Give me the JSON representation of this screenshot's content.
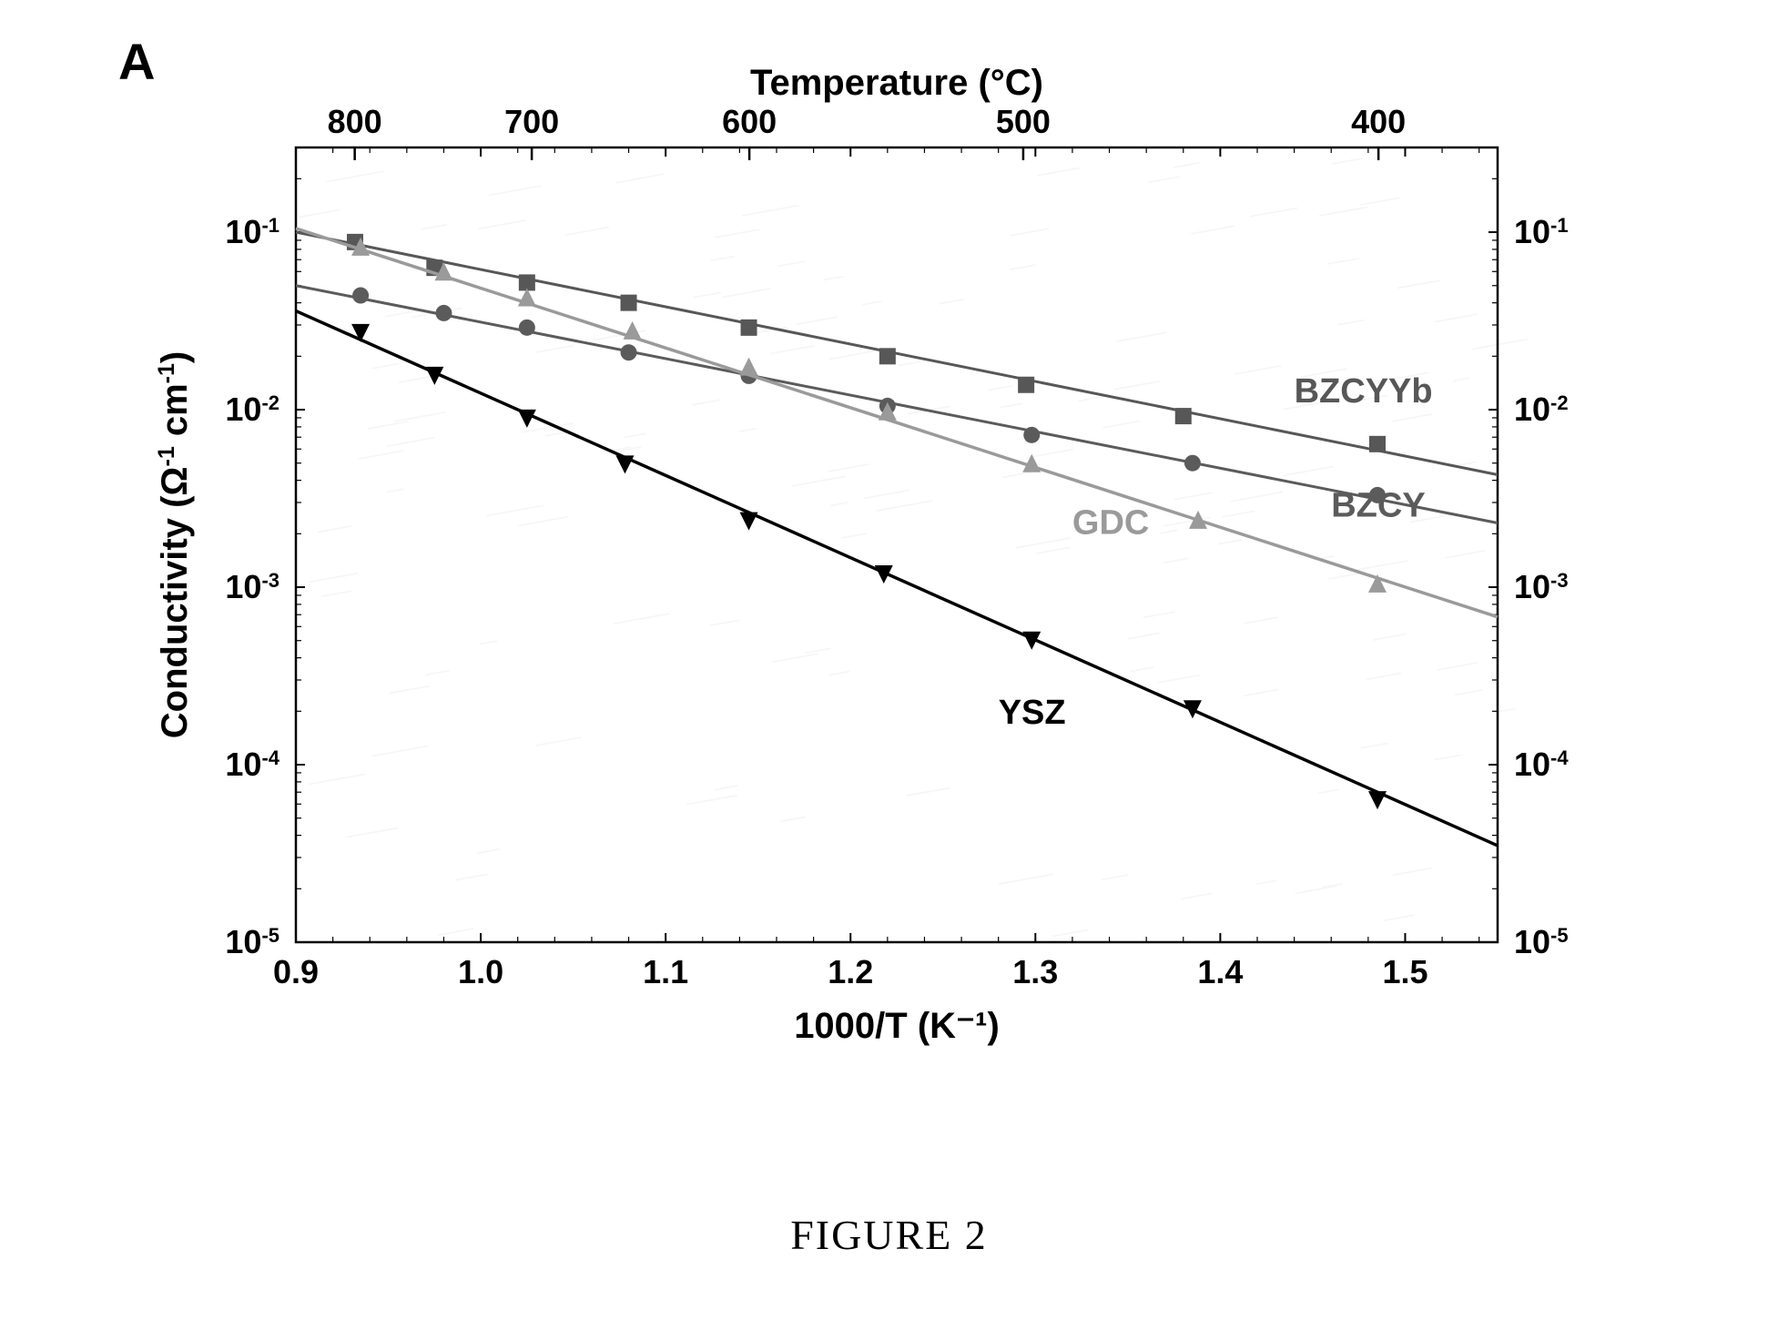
{
  "panel_label": "A",
  "caption": "FIGURE 2",
  "chart": {
    "type": "line-scatter-arrhenius",
    "background_color": "#ffffff",
    "axis_color": "#000000",
    "axis_line_width": 2.5,
    "tick_length": 10,
    "minor_tick_length": 6,
    "plot_background_noise": true,
    "x_axis_bottom": {
      "title": "1000/T (K⁻¹)",
      "title_fontsize": 40,
      "xlim": [
        0.9,
        1.55
      ],
      "ticks": [
        0.9,
        1.0,
        1.1,
        1.2,
        1.3,
        1.4,
        1.5
      ],
      "tick_labels": [
        "0.9",
        "1.0",
        "1.1",
        "1.2",
        "1.3",
        "1.4",
        "1.5"
      ],
      "minor_step": 0.02,
      "label_fontsize": 36
    },
    "x_axis_top": {
      "title": "Temperature (°C)",
      "title_fontsize": 40,
      "ticks_temp_c": [
        800,
        700,
        600,
        500,
        400
      ],
      "tick_labels": [
        "800",
        "700",
        "600",
        "500",
        "400"
      ],
      "label_fontsize": 36
    },
    "y_axis": {
      "title": "Conductivity (Ω⁻¹ cm⁻¹)",
      "title_fontsize": 40,
      "scale": "log",
      "ylim": [
        1e-05,
        0.3
      ],
      "major_ticks": [
        1e-05,
        0.0001,
        0.001,
        0.01,
        0.1
      ],
      "tick_labels": [
        "10⁻⁵",
        "10⁻⁴",
        "10⁻³",
        "10⁻²",
        "10⁻¹"
      ],
      "label_fontsize": 36,
      "mirror_right": true
    },
    "series": [
      {
        "name": "BZCYYb",
        "label": "BZCYYb",
        "label_xy": [
          1.44,
          0.011
        ],
        "color": "#575757",
        "marker": "square",
        "marker_size": 9,
        "line_width": 3,
        "points": [
          [
            0.932,
            0.088
          ],
          [
            0.975,
            0.063
          ],
          [
            1.025,
            0.052
          ],
          [
            1.08,
            0.04
          ],
          [
            1.145,
            0.029
          ],
          [
            1.22,
            0.02
          ],
          [
            1.295,
            0.0138
          ],
          [
            1.38,
            0.0092
          ],
          [
            1.485,
            0.0064
          ]
        ],
        "line_fit": [
          [
            0.9,
            0.1
          ],
          [
            1.55,
            0.0043
          ]
        ]
      },
      {
        "name": "BZCY",
        "label": "BZCY",
        "label_xy": [
          1.46,
          0.0025
        ],
        "color": "#5b5b5b",
        "marker": "circle",
        "marker_size": 9,
        "line_width": 3,
        "points": [
          [
            0.935,
            0.044
          ],
          [
            0.98,
            0.035
          ],
          [
            1.025,
            0.029
          ],
          [
            1.08,
            0.021
          ],
          [
            1.145,
            0.0155
          ],
          [
            1.22,
            0.0105
          ],
          [
            1.298,
            0.0072
          ],
          [
            1.385,
            0.005
          ],
          [
            1.485,
            0.0033
          ]
        ],
        "line_fit": [
          [
            0.9,
            0.05
          ],
          [
            1.55,
            0.0023
          ]
        ]
      },
      {
        "name": "GDC",
        "label": "GDC",
        "label_xy": [
          1.32,
          0.002
        ],
        "color": "#9a9a9a",
        "marker": "triangle-up",
        "marker_size": 10,
        "line_width": 3.5,
        "points": [
          [
            0.935,
            0.083
          ],
          [
            0.98,
            0.06
          ],
          [
            1.025,
            0.043
          ],
          [
            1.082,
            0.028
          ],
          [
            1.145,
            0.0175
          ],
          [
            1.22,
            0.0098
          ],
          [
            1.298,
            0.005
          ],
          [
            1.388,
            0.0024
          ],
          [
            1.485,
            0.00105
          ]
        ],
        "line_fit": [
          [
            0.9,
            0.105
          ],
          [
            1.55,
            0.00068
          ]
        ]
      },
      {
        "name": "YSZ",
        "label": "YSZ",
        "label_xy": [
          1.28,
          0.00017
        ],
        "color": "#000000",
        "marker": "triangle-down",
        "marker_size": 10,
        "line_width": 3.5,
        "points": [
          [
            0.935,
            0.027
          ],
          [
            0.975,
            0.0155
          ],
          [
            1.025,
            0.0089
          ],
          [
            1.078,
            0.0049
          ],
          [
            1.145,
            0.00235
          ],
          [
            1.218,
            0.00118
          ],
          [
            1.298,
            0.0005
          ],
          [
            1.385,
            0.000205
          ],
          [
            1.485,
            6.3e-05
          ]
        ],
        "line_fit": [
          [
            0.9,
            0.036
          ],
          [
            1.55,
            3.5e-05
          ]
        ]
      }
    ]
  }
}
